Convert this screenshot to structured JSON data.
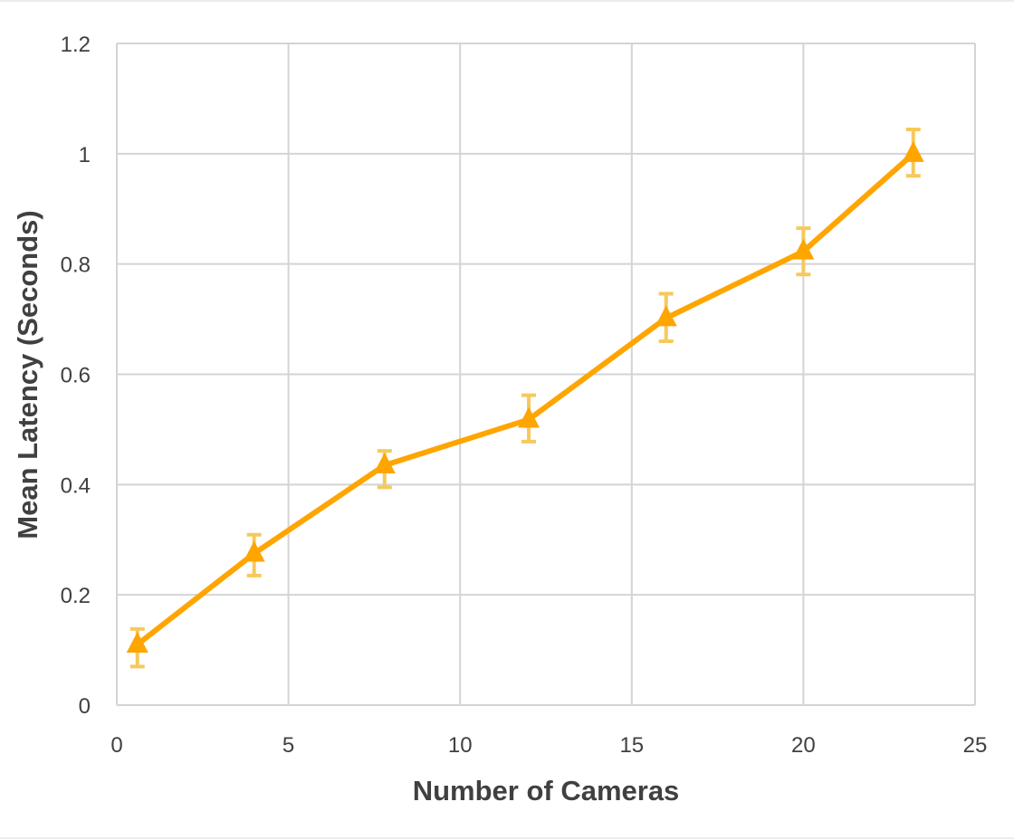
{
  "chart_data": {
    "type": "line",
    "title": "",
    "xlabel": "Number of Cameras",
    "ylabel": "Mean Latency (Seconds)",
    "xlim": [
      0,
      25
    ],
    "ylim": [
      0,
      1.2
    ],
    "x_ticks": [
      0,
      5,
      10,
      15,
      20,
      25
    ],
    "y_ticks": [
      0,
      0.2,
      0.4,
      0.6,
      0.8,
      1,
      1.2
    ],
    "x_tick_labels": [
      "0",
      "5",
      "10",
      "15",
      "20",
      "25"
    ],
    "y_tick_labels": [
      "0",
      "0.2",
      "0.4",
      "0.6",
      "0.8",
      "1",
      "1.2"
    ],
    "grid": true,
    "legend": "none",
    "series": [
      {
        "color": "#FFA500",
        "error_color": "#F6C95C",
        "marker": "triangle",
        "x": [
          0.6,
          4,
          7.8,
          12,
          16,
          20,
          23.2
        ],
        "y": [
          0.11,
          0.275,
          0.435,
          0.518,
          0.702,
          0.823,
          1.0
        ],
        "y_err_low": [
          0.04,
          0.04,
          0.04,
          0.04,
          0.042,
          0.042,
          0.04
        ],
        "y_err_high": [
          0.028,
          0.034,
          0.026,
          0.044,
          0.044,
          0.042,
          0.044
        ]
      }
    ]
  }
}
